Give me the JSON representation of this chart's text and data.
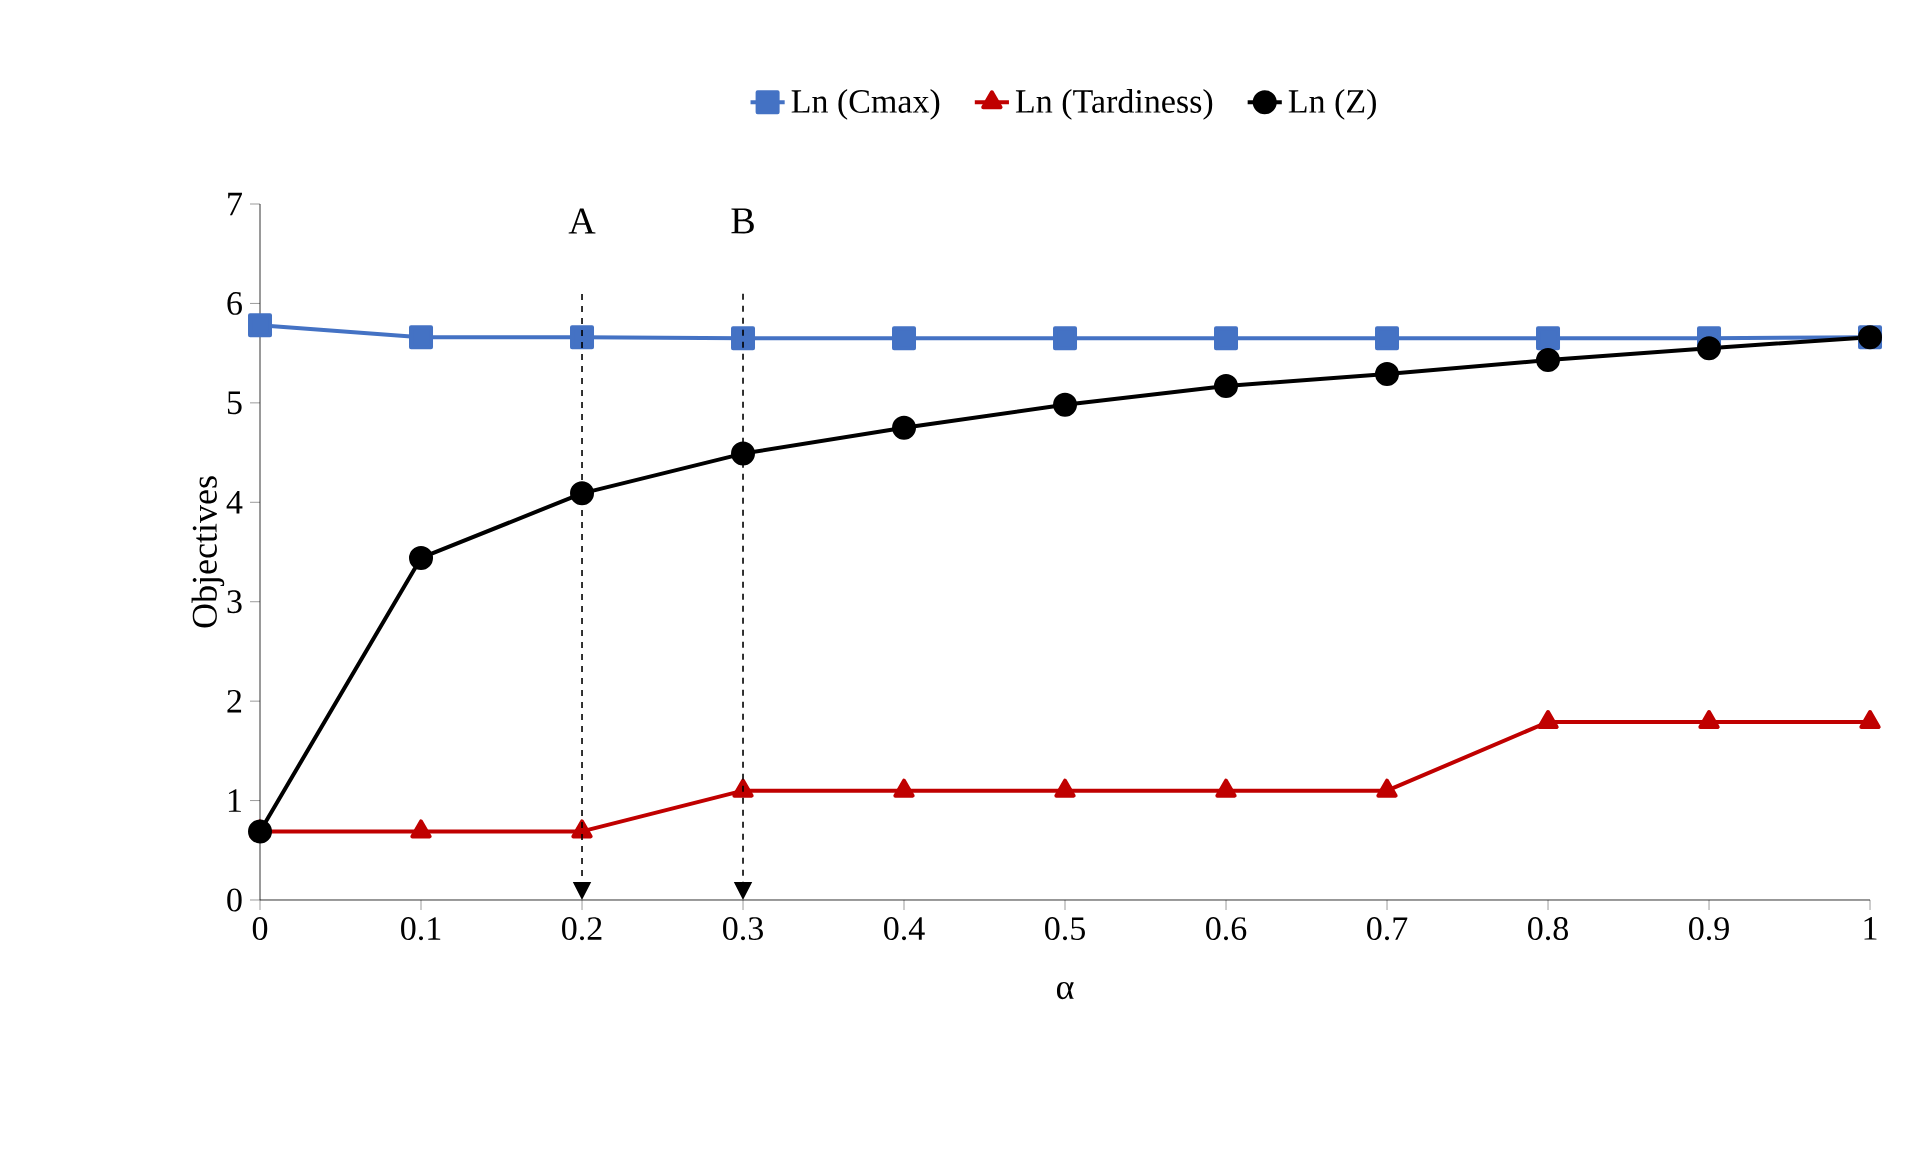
{
  "chart_data": {
    "type": "line",
    "xlabel": "α",
    "ylabel": "Objectives",
    "x": [
      0,
      0.1,
      0.2,
      0.3,
      0.4,
      0.5,
      0.6,
      0.7,
      0.8,
      0.9,
      1
    ],
    "series": [
      {
        "name": "Ln (Cmax)",
        "color": "#4472c4",
        "marker": "square",
        "values": [
          5.78,
          5.66,
          5.66,
          5.65,
          5.65,
          5.65,
          5.65,
          5.65,
          5.65,
          5.65,
          5.66
        ]
      },
      {
        "name": "Ln (Tardiness)",
        "color": "#c00000",
        "marker": "triangle",
        "values": [
          0.69,
          0.69,
          0.69,
          1.1,
          1.1,
          1.1,
          1.1,
          1.1,
          1.79,
          1.79,
          1.79
        ]
      },
      {
        "name": "Ln (Z)",
        "color": "#000000",
        "marker": "circle",
        "values": [
          0.69,
          3.44,
          4.09,
          4.49,
          4.75,
          4.98,
          5.17,
          5.29,
          5.43,
          5.55,
          5.66
        ]
      }
    ],
    "xlim": [
      0,
      1
    ],
    "xticks": [
      0,
      0.1,
      0.2,
      0.3,
      0.4,
      0.5,
      0.6,
      0.7,
      0.8,
      0.9,
      1
    ],
    "ylim": [
      0,
      7
    ],
    "yticks": [
      0,
      1,
      2,
      3,
      4,
      5,
      6,
      7
    ],
    "grid": false,
    "legend": "top",
    "ref_lines": [
      {
        "axis": "x",
        "value": 0.2,
        "label": "A",
        "line_style": "dashed"
      },
      {
        "axis": "x",
        "value": 0.3,
        "label": "B",
        "line_style": "dashed"
      }
    ]
  }
}
